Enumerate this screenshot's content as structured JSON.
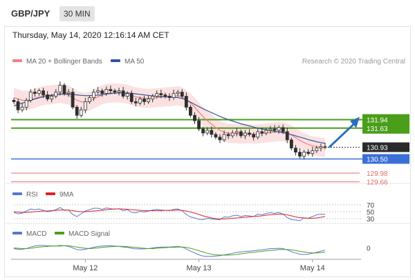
{
  "header": {
    "pair": "GBP/JPY",
    "timeframe": "30 MIN"
  },
  "datetime": "Thursday, May 14, 2020 12:16:14 AM CET",
  "main_legend": [
    {
      "label": "MA 20 + Bollinger Bands",
      "color": "#f08080"
    },
    {
      "label": "MA 50",
      "color": "#2b579a"
    }
  ],
  "credit": "Research © 2020 Trading Central",
  "rsi_legend": [
    {
      "label": "RSI",
      "color": "#5577cc"
    },
    {
      "label": "9MA",
      "color": "#dd2222"
    }
  ],
  "macd_legend": [
    {
      "label": "MACD",
      "color": "#5577cc"
    },
    {
      "label": "MACD Signal",
      "color": "#4a9e1a"
    }
  ],
  "chart_data": [
    {
      "type": "candlestick",
      "panel": "price",
      "ylim": [
        129.5,
        133.8
      ],
      "grid": false,
      "legend_position": "top-left",
      "levels": [
        {
          "label": "131.94",
          "value": 131.94,
          "color": "#4a9e1a",
          "style": "resistance"
        },
        {
          "label": "131.63",
          "value": 131.63,
          "color": "#4a9e1a",
          "style": "resistance"
        },
        {
          "label": "130.93",
          "value": 130.93,
          "color": "#222222",
          "style": "last_price"
        },
        {
          "label": "130.50",
          "value": 130.5,
          "color": "#3a6fd8",
          "style": "pivot"
        },
        {
          "label": "129.98",
          "value": 129.98,
          "color": "#e86a6a",
          "style": "support"
        },
        {
          "label": "129.66",
          "value": 129.66,
          "color": "#e86a6a",
          "style": "support"
        }
      ],
      "projection": {
        "from": 130.93,
        "to": 131.94
      },
      "x_labels": [
        "May 12",
        "May 13",
        "May 14"
      ],
      "close": [
        132.6,
        132.3,
        132.4,
        132.65,
        132.95,
        132.9,
        133.0,
        132.85,
        132.7,
        132.8,
        132.95,
        133.2,
        132.9,
        132.95,
        132.4,
        132.1,
        132.3,
        132.6,
        132.75,
        132.95,
        133.0,
        132.9,
        133.05,
        133.0,
        132.95,
        133.0,
        132.8,
        132.9,
        132.6,
        132.55,
        132.7,
        132.6,
        132.7,
        132.8,
        132.9,
        132.85,
        132.8,
        132.75,
        132.9,
        132.95,
        132.8,
        132.4,
        132.1,
        131.9,
        131.6,
        131.45,
        131.55,
        131.4,
        131.3,
        131.2,
        131.4,
        131.35,
        131.45,
        131.5,
        131.35,
        131.45,
        131.4,
        131.3,
        131.5,
        131.45,
        131.55,
        131.6,
        131.55,
        131.65,
        131.5,
        131.2,
        130.9,
        130.75,
        130.6,
        130.75,
        130.7,
        130.8,
        130.9,
        130.95,
        130.93
      ],
      "ma20": [
        132.75,
        132.7,
        132.65,
        132.65,
        132.68,
        132.72,
        132.78,
        132.82,
        132.85,
        132.85,
        132.88,
        132.9,
        132.88,
        132.85,
        132.75,
        132.65,
        132.6,
        132.58,
        132.62,
        132.7,
        132.78,
        132.85,
        132.9,
        132.92,
        132.92,
        132.92,
        132.9,
        132.87,
        132.82,
        132.78,
        132.75,
        132.73,
        132.72,
        132.73,
        132.75,
        132.76,
        132.78,
        132.78,
        132.8,
        132.82,
        132.78,
        132.68,
        132.55,
        132.4,
        132.22,
        132.05,
        131.9,
        131.78,
        131.65,
        131.55,
        131.48,
        131.45,
        131.43,
        131.42,
        131.41,
        131.42,
        131.42,
        131.41,
        131.42,
        131.43,
        131.45,
        131.47,
        131.48,
        131.5,
        131.5,
        131.45,
        131.38,
        131.28,
        131.18,
        131.1,
        131.03,
        130.98,
        130.95,
        130.93,
        130.92
      ],
      "ma50": [
        132.45,
        132.5,
        132.55,
        132.6,
        132.65,
        132.7,
        132.74,
        132.78,
        132.81,
        132.83,
        132.85,
        132.87,
        132.88,
        132.88,
        132.87,
        132.85,
        132.83,
        132.82,
        132.82,
        132.83,
        132.84,
        132.86,
        132.88,
        132.9,
        132.91,
        132.92,
        132.92,
        132.92,
        132.91,
        132.89,
        132.87,
        132.85,
        132.83,
        132.81,
        132.8,
        132.79,
        132.78,
        132.77,
        132.76,
        132.75,
        132.72,
        132.66,
        132.58,
        132.5,
        132.42,
        132.34,
        132.27,
        132.2,
        132.13,
        132.06,
        132.0,
        131.94,
        131.89,
        131.84,
        131.79,
        131.75,
        131.71,
        131.67,
        131.63,
        131.6,
        131.57,
        131.54,
        131.51,
        131.49,
        131.46,
        131.43,
        131.39,
        131.35,
        131.3,
        131.26,
        131.21,
        131.17,
        131.13,
        131.1,
        131.07
      ]
    },
    {
      "type": "line",
      "panel": "rsi",
      "title": "RSI",
      "tick_labels": [
        "70",
        "50",
        "30"
      ],
      "ylim": [
        20,
        80
      ],
      "series": [
        {
          "name": "RSI",
          "color": "#5577cc",
          "values": [
            48,
            44,
            46,
            52,
            58,
            56,
            58,
            54,
            50,
            52,
            56,
            62,
            54,
            55,
            42,
            36,
            44,
            52,
            56,
            60,
            60,
            57,
            61,
            59,
            57,
            59,
            53,
            56,
            48,
            47,
            51,
            49,
            52,
            55,
            57,
            55,
            54,
            53,
            57,
            58,
            53,
            42,
            35,
            32,
            28,
            27,
            31,
            29,
            28,
            27,
            35,
            34,
            38,
            40,
            36,
            39,
            38,
            36,
            43,
            41,
            45,
            47,
            45,
            48,
            43,
            33,
            27,
            26,
            24,
            32,
            31,
            36,
            41,
            43,
            43
          ]
        },
        {
          "name": "9MA",
          "color": "#dd2222",
          "values": [
            50,
            49,
            48,
            48,
            49,
            50,
            51,
            52,
            52,
            53,
            54,
            55,
            55,
            55,
            53,
            51,
            50,
            50,
            51,
            52,
            53,
            54,
            56,
            57,
            58,
            58,
            58,
            57,
            56,
            55,
            54,
            53,
            53,
            53,
            53,
            53,
            54,
            54,
            54,
            55,
            54,
            52,
            49,
            46,
            42,
            38,
            35,
            32,
            30,
            29,
            29,
            30,
            31,
            32,
            33,
            34,
            35,
            36,
            37,
            38,
            40,
            41,
            42,
            43,
            43,
            41,
            38,
            35,
            33,
            32,
            31,
            31,
            32,
            34,
            36
          ]
        }
      ]
    },
    {
      "type": "line",
      "panel": "macd",
      "title": "MACD",
      "tick_labels": [
        "0"
      ],
      "ylim": [
        -0.32,
        0.3
      ],
      "series": [
        {
          "name": "MACD",
          "color": "#5577cc",
          "values": [
            -0.02,
            -0.04,
            -0.04,
            -0.02,
            0.03,
            0.06,
            0.08,
            0.08,
            0.07,
            0.06,
            0.06,
            0.08,
            0.07,
            0.05,
            0.0,
            -0.05,
            -0.06,
            -0.04,
            -0.01,
            0.02,
            0.05,
            0.06,
            0.07,
            0.07,
            0.06,
            0.05,
            0.03,
            0.02,
            -0.01,
            -0.03,
            -0.03,
            -0.03,
            -0.02,
            0.0,
            0.02,
            0.03,
            0.03,
            0.03,
            0.04,
            0.05,
            0.03,
            -0.03,
            -0.1,
            -0.16,
            -0.22,
            -0.26,
            -0.27,
            -0.27,
            -0.26,
            -0.25,
            -0.22,
            -0.2,
            -0.17,
            -0.14,
            -0.13,
            -0.11,
            -0.1,
            -0.09,
            -0.07,
            -0.06,
            -0.04,
            -0.02,
            -0.02,
            -0.01,
            -0.02,
            -0.06,
            -0.12,
            -0.16,
            -0.2,
            -0.21,
            -0.2,
            -0.17,
            -0.14,
            -0.1,
            -0.07
          ]
        },
        {
          "name": "MACD Signal",
          "color": "#4a9e1a",
          "values": [
            0.0,
            -0.01,
            -0.02,
            -0.02,
            -0.01,
            0.01,
            0.03,
            0.04,
            0.05,
            0.06,
            0.06,
            0.06,
            0.07,
            0.07,
            0.05,
            0.03,
            0.01,
            -0.01,
            -0.02,
            -0.01,
            0.0,
            0.02,
            0.03,
            0.04,
            0.05,
            0.05,
            0.05,
            0.04,
            0.03,
            0.02,
            0.0,
            -0.01,
            -0.02,
            -0.02,
            -0.01,
            0.0,
            0.01,
            0.02,
            0.02,
            0.03,
            0.03,
            0.02,
            -0.01,
            -0.05,
            -0.09,
            -0.13,
            -0.17,
            -0.2,
            -0.22,
            -0.23,
            -0.23,
            -0.23,
            -0.22,
            -0.21,
            -0.19,
            -0.17,
            -0.15,
            -0.14,
            -0.12,
            -0.11,
            -0.09,
            -0.08,
            -0.07,
            -0.05,
            -0.05,
            -0.05,
            -0.06,
            -0.08,
            -0.11,
            -0.13,
            -0.15,
            -0.16,
            -0.16,
            -0.15,
            -0.13
          ]
        }
      ]
    }
  ]
}
